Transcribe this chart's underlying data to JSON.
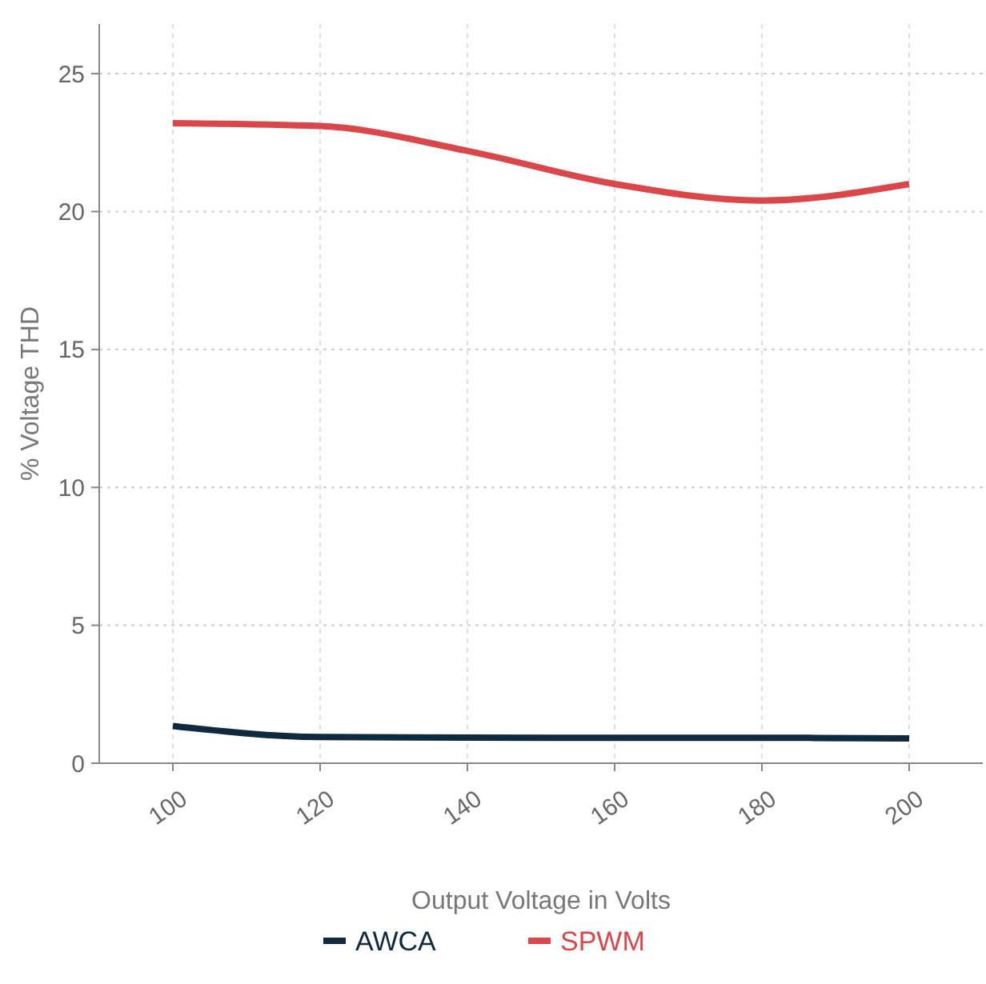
{
  "chart_data": {
    "type": "line",
    "xlabel": "Output Voltage in Volts",
    "ylabel": "% Voltage THD",
    "x": [
      100,
      120,
      140,
      160,
      180,
      200
    ],
    "series": [
      {
        "name": "AWCA",
        "color": "#0f2a3f",
        "values": [
          1.35,
          0.95,
          0.93,
          0.92,
          0.92,
          0.9
        ]
      },
      {
        "name": "SPWM",
        "color": "#d9474a",
        "values": [
          23.2,
          23.1,
          22.2,
          21.0,
          20.4,
          21.0
        ]
      }
    ],
    "xlim": [
      90,
      210
    ],
    "xticks": [
      100,
      120,
      140,
      160,
      180,
      200
    ],
    "ylim": [
      0,
      26.8
    ],
    "yticks": [
      0,
      5,
      10,
      15,
      20,
      25
    ],
    "grid": true,
    "legend": "bottom",
    "line_style": "solid",
    "marker": "none"
  }
}
